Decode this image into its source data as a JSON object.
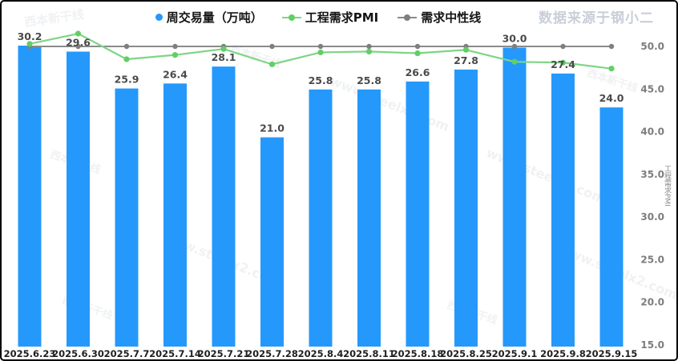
{
  "header": {
    "watermark_source": "数据来源于钢小二"
  },
  "legend": [
    {
      "label": "周交易量（万吨）",
      "marker": "dot",
      "color": "#2598fb"
    },
    {
      "label": "工程需求PMI",
      "marker": "line-dot",
      "color": "#7ed586"
    },
    {
      "label": "需求中性线",
      "marker": "line-dot",
      "color": "#8a8a8a"
    }
  ],
  "watermarks": {
    "diagonal_text": "www.steelx2.com",
    "logo_text": "西本新干线"
  },
  "chart_data": {
    "type": "bar",
    "subtype": "bar+line combo, dual axis",
    "categories": [
      "2025.6.23",
      "2025.6.30",
      "2025.7.7",
      "2025.7.14",
      "2025.7.21",
      "2025.7.28",
      "2025.8.4",
      "2025.8.11",
      "2025.8.18",
      "2025.8.25",
      "2025.9.1",
      "2025.9.8",
      "2025.9.15"
    ],
    "series": [
      {
        "name": "周交易量（万吨）",
        "type": "bar",
        "axis": "left",
        "color": "#2598fb",
        "values": [
          30.2,
          29.6,
          25.9,
          26.4,
          28.1,
          21.0,
          25.8,
          25.8,
          26.6,
          27.8,
          30.0,
          27.4,
          24.0
        ],
        "data_labels": true
      },
      {
        "name": "工程需求PMI",
        "type": "line",
        "axis": "right",
        "color": "#7ed586",
        "marker_color": "#62ce66",
        "values": [
          50.3,
          51.5,
          48.5,
          49.0,
          49.7,
          47.9,
          49.3,
          49.4,
          49.2,
          49.6,
          48.2,
          48.1,
          47.4
        ]
      },
      {
        "name": "需求中性线",
        "type": "line",
        "axis": "right",
        "color": "#8a8a8a",
        "marker_color": "#7f7f7f",
        "constant": 50.0
      }
    ],
    "left_axis": {
      "label": "",
      "visible": false,
      "min": 0,
      "max": 32
    },
    "right_axis": {
      "label": "工程需求PMI",
      "ticks": [
        15.0,
        20.0,
        25.0,
        30.0,
        35.0,
        40.0,
        45.0,
        50.0
      ],
      "min": 15.0,
      "max": 50.0,
      "decimals": 1
    },
    "legend_position": "top-center",
    "grid": false,
    "label_colors": {
      "bar_value": "#4a4a4a",
      "x_tick": "#1f1f1f",
      "y_tick": "#7d7d7d"
    }
  }
}
